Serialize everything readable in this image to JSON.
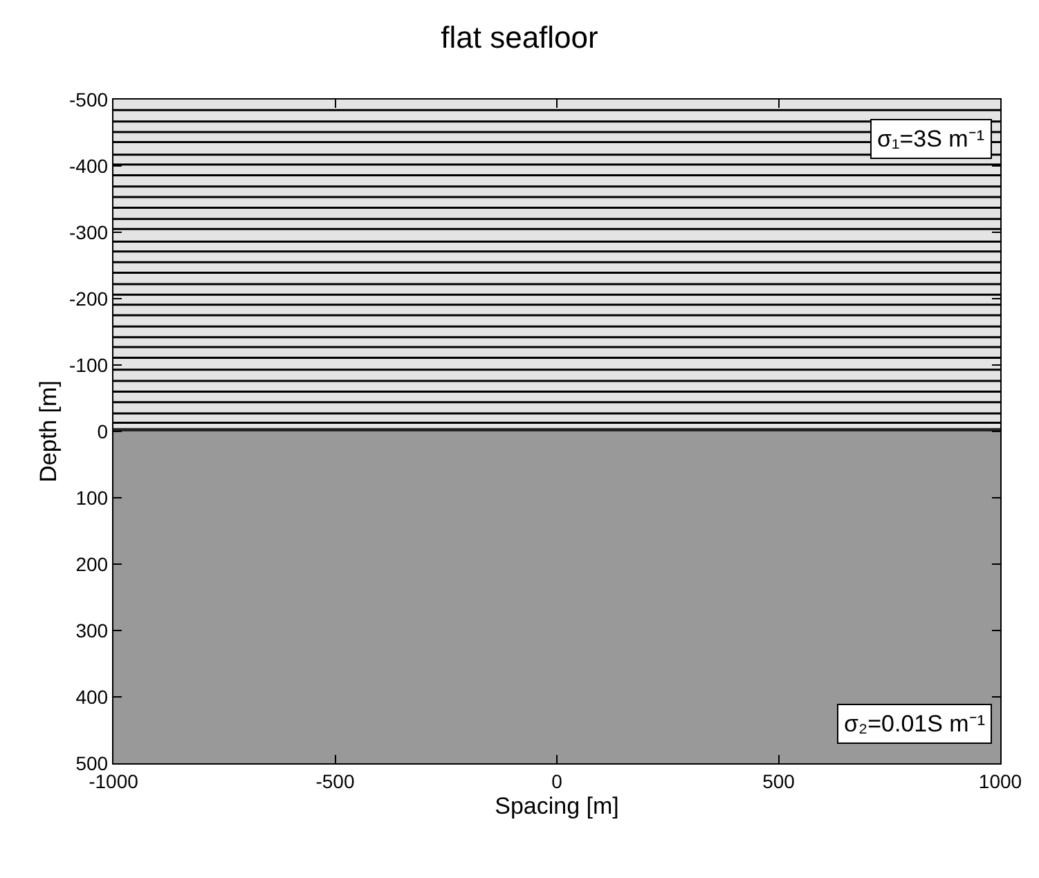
{
  "chart_data": {
    "type": "line",
    "title": "flat seafloor",
    "xlabel": "Spacing [m]",
    "ylabel": "Depth [m]",
    "xlim": [
      -1000,
      1000
    ],
    "xticks": [
      -1000,
      -500,
      0,
      500,
      1000
    ],
    "ylim": [
      500,
      -500
    ],
    "yticks": [
      -500,
      -400,
      -300,
      -200,
      -100,
      0,
      100,
      200,
      300,
      400,
      500
    ],
    "marker": "none",
    "line_style": "solid",
    "x": [
      -1000,
      1000
    ],
    "bands": [
      {
        "axis": "y",
        "from": -500,
        "to": 0,
        "color": "#e4e4e4"
      },
      {
        "axis": "y",
        "from": 0,
        "to": 500,
        "color": "#999999"
      },
      {
        "axis": "y",
        "from": -5,
        "to": 0,
        "color": "#222222"
      }
    ],
    "series": [
      {
        "color": "#000000",
        "values": [
          -484,
          -484
        ]
      },
      {
        "color": "#000000",
        "values": [
          -467,
          -467
        ]
      },
      {
        "color": "#000000",
        "values": [
          -451,
          -451
        ]
      },
      {
        "color": "#000000",
        "values": [
          -436,
          -436
        ]
      },
      {
        "color": "#000000",
        "values": [
          -417,
          -417
        ]
      },
      {
        "color": "#000000",
        "values": [
          -402,
          -402
        ]
      },
      {
        "color": "#000000",
        "values": [
          -386,
          -386
        ]
      },
      {
        "color": "#000000",
        "values": [
          -369,
          -369
        ]
      },
      {
        "color": "#000000",
        "values": [
          -353,
          -353
        ]
      },
      {
        "color": "#000000",
        "values": [
          -337,
          -337
        ]
      },
      {
        "color": "#000000",
        "values": [
          -320,
          -320
        ]
      },
      {
        "color": "#000000",
        "values": [
          -305,
          -305
        ]
      },
      {
        "color": "#000000",
        "values": [
          -286,
          -286
        ]
      },
      {
        "color": "#000000",
        "values": [
          -271,
          -271
        ]
      },
      {
        "color": "#000000",
        "values": [
          -255,
          -255
        ]
      },
      {
        "color": "#000000",
        "values": [
          -239,
          -239
        ]
      },
      {
        "color": "#000000",
        "values": [
          -222,
          -222
        ]
      },
      {
        "color": "#000000",
        "values": [
          -206,
          -206
        ]
      },
      {
        "color": "#000000",
        "values": [
          -191,
          -191
        ]
      },
      {
        "color": "#000000",
        "values": [
          -175,
          -175
        ]
      },
      {
        "color": "#000000",
        "values": [
          -158,
          -158
        ]
      },
      {
        "color": "#000000",
        "values": [
          -142,
          -142
        ]
      },
      {
        "color": "#000000",
        "values": [
          -127,
          -127
        ]
      },
      {
        "color": "#000000",
        "values": [
          -111,
          -111
        ]
      },
      {
        "color": "#000000",
        "values": [
          -93,
          -93
        ]
      },
      {
        "color": "#000000",
        "values": [
          -76,
          -76
        ]
      },
      {
        "color": "#000000",
        "values": [
          -60,
          -60
        ]
      },
      {
        "color": "#000000",
        "values": [
          -44,
          -44
        ]
      },
      {
        "color": "#000000",
        "values": [
          -27,
          -27
        ]
      },
      {
        "color": "#000000",
        "values": [
          -13,
          -13
        ]
      }
    ],
    "annotations": [
      "σ₁=3S m⁻¹",
      "σ₂=0.01S m⁻¹"
    ]
  }
}
